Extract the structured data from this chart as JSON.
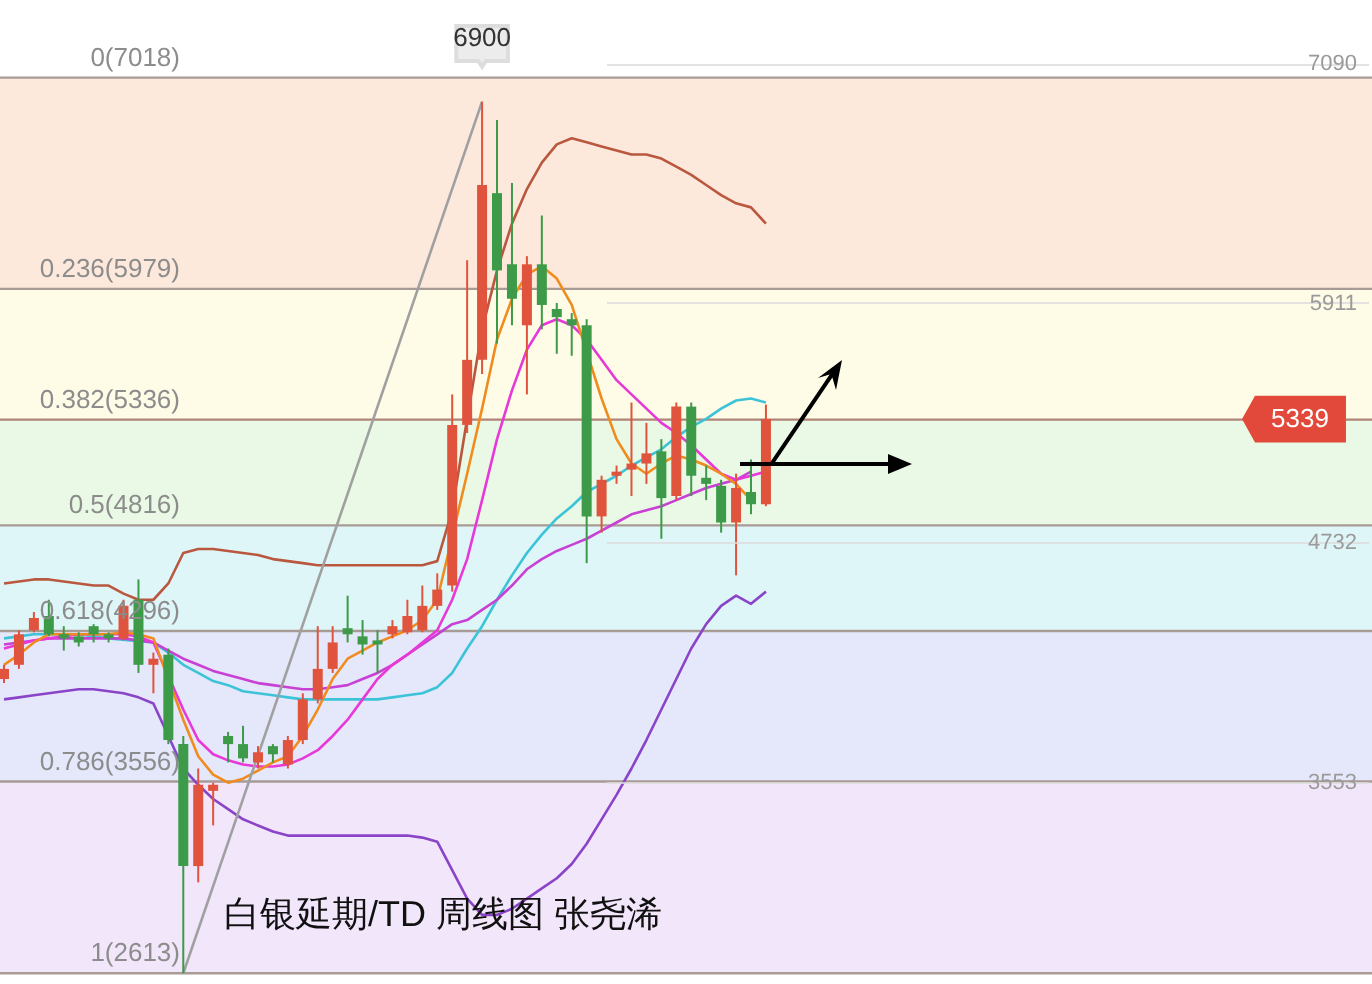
{
  "chart_data": {
    "type": "candlestick",
    "categories": [
      null,
      null,
      null,
      null,
      null,
      null,
      null,
      null,
      null,
      null,
      null,
      null,
      null,
      null,
      null,
      null,
      null,
      null,
      null,
      null,
      null,
      null,
      null,
      null,
      null,
      null,
      null,
      null,
      null,
      null,
      null,
      null,
      null,
      null,
      null,
      null,
      null,
      null,
      null,
      null,
      null,
      null,
      null,
      null,
      null,
      null,
      null,
      null,
      null,
      null,
      null,
      null
    ],
    "ohlc": [
      [
        4060,
        4130,
        4040,
        4110
      ],
      [
        4130,
        4300,
        4110,
        4280
      ],
      [
        4300,
        4390,
        4290,
        4360
      ],
      [
        4370,
        4450,
        4270,
        4280
      ],
      [
        4280,
        4320,
        4200,
        4260
      ],
      [
        4270,
        4290,
        4220,
        4240
      ],
      [
        4320,
        4330,
        4240,
        4280
      ],
      [
        4280,
        4290,
        4240,
        4260
      ],
      [
        4260,
        4450,
        4250,
        4420
      ],
      [
        4450,
        4550,
        4090,
        4130
      ],
      [
        4130,
        4190,
        3990,
        4160
      ],
      [
        4180,
        4210,
        3740,
        3760
      ],
      [
        3740,
        3780,
        2613,
        3140
      ],
      [
        3140,
        3620,
        3060,
        3540
      ],
      [
        3510,
        3550,
        3340,
        3540
      ],
      [
        3780,
        3800,
        3650,
        3740
      ],
      [
        3740,
        3830,
        3650,
        3670
      ],
      [
        3650,
        3730,
        3620,
        3700
      ],
      [
        3730,
        3740,
        3650,
        3690
      ],
      [
        3640,
        3780,
        3620,
        3760
      ],
      [
        3760,
        3990,
        3740,
        3960
      ],
      [
        3960,
        4320,
        3940,
        4110
      ],
      [
        4110,
        4320,
        4090,
        4240
      ],
      [
        4310,
        4470,
        4240,
        4280
      ],
      [
        4270,
        4350,
        4180,
        4230
      ],
      [
        4250,
        4300,
        4090,
        4230
      ],
      [
        4280,
        4350,
        4260,
        4320
      ],
      [
        4290,
        4450,
        4280,
        4370
      ],
      [
        4300,
        4520,
        4290,
        4420
      ],
      [
        4420,
        4580,
        4400,
        4500
      ],
      [
        4520,
        5460,
        4490,
        5310
      ],
      [
        5310,
        6120,
        5270,
        5630
      ],
      [
        5630,
        6900,
        5560,
        6490
      ],
      [
        6450,
        6810,
        5710,
        6070
      ],
      [
        6100,
        6500,
        5800,
        5930
      ],
      [
        5800,
        6140,
        5460,
        6100
      ],
      [
        6100,
        6340,
        5780,
        5900
      ],
      [
        5880,
        5910,
        5660,
        5840
      ],
      [
        5830,
        5860,
        5650,
        5800
      ],
      [
        5800,
        5830,
        4630,
        4860
      ],
      [
        4860,
        5060,
        4780,
        5040
      ],
      [
        5060,
        5110,
        5020,
        5080
      ],
      [
        5090,
        5420,
        4960,
        5120
      ],
      [
        5120,
        5320,
        5020,
        5170
      ],
      [
        5180,
        5240,
        4750,
        4950
      ],
      [
        4960,
        5420,
        4940,
        5400
      ],
      [
        5400,
        5420,
        4960,
        5060
      ],
      [
        5050,
        5110,
        4940,
        5020
      ],
      [
        5010,
        5040,
        4780,
        4830
      ],
      [
        4830,
        5070,
        4570,
        5000
      ],
      [
        4980,
        5140,
        4870,
        4920
      ],
      [
        4920,
        5410,
        4910,
        5339
      ]
    ],
    "colors": [
      "#e0533c",
      "#e0533c",
      "#e0533c",
      "#3c9a48",
      "#3c9a48",
      "#3c9a48",
      "#3c9a48",
      "#3c9a48",
      "#e0533c",
      "#3c9a48",
      "#e0533c",
      "#3c9a48",
      "#3c9a48",
      "#e0533c",
      "#e0533c",
      "#3c9a48",
      "#3c9a48",
      "#e0533c",
      "#3c9a48",
      "#e0533c",
      "#e0533c",
      "#e0533c",
      "#e0533c",
      "#3c9a48",
      "#3c9a48",
      "#3c9a48",
      "#e0533c",
      "#e0533c",
      "#e0533c",
      "#e0533c",
      "#e0533c",
      "#e0533c",
      "#e0533c",
      "#3c9a48",
      "#3c9a48",
      "#e0533c",
      "#3c9a48",
      "#3c9a48",
      "#3c9a48",
      "#3c9a48",
      "#e0533c",
      "#e0533c",
      "#e0533c",
      "#e0533c",
      "#3c9a48",
      "#e0533c",
      "#3c9a48",
      "#3c9a48",
      "#3c9a48",
      "#e0533c",
      "#3c9a48",
      "#e0533c"
    ],
    "series": [
      {
        "type": "line",
        "color": "#b9573f",
        "values": [
          4530,
          4540,
          4550,
          4550,
          4540,
          4530,
          4520,
          4520,
          4480,
          4450,
          4450,
          4530,
          4680,
          4700,
          4700,
          4690,
          4680,
          4670,
          4650,
          4640,
          4630,
          4620,
          4620,
          4620,
          4620,
          4620,
          4620,
          4620,
          4620,
          4640,
          4890,
          5340,
          5780,
          6070,
          6300,
          6470,
          6600,
          6690,
          6720,
          6700,
          6680,
          6660,
          6640,
          6640,
          6620,
          6580,
          6540,
          6490,
          6440,
          6400,
          6380,
          6300
        ]
      },
      {
        "type": "line",
        "color": "#3cc3d8",
        "values": [
          4260,
          4270,
          4280,
          4280,
          4280,
          4280,
          4270,
          4260,
          null,
          null,
          4240,
          4190,
          4130,
          4090,
          4050,
          4030,
          4000,
          3990,
          3980,
          3970,
          3960,
          3960,
          3960,
          3960,
          3960,
          3960,
          3970,
          3980,
          3990,
          4020,
          4090,
          4210,
          4320,
          4450,
          4570,
          4680,
          4770,
          4850,
          4910,
          4980,
          5020,
          5060,
          5110,
          5150,
          5190,
          5250,
          5300,
          5340,
          5390,
          5430,
          5440,
          5420
        ]
      },
      {
        "type": "line",
        "color": "#8a44c8",
        "values": [
          3960,
          3970,
          3980,
          3990,
          4000,
          4010,
          4010,
          4000,
          3990,
          3970,
          3940,
          null,
          3620,
          3540,
          3470,
          3420,
          3370,
          3340,
          3310,
          3290,
          3290,
          3290,
          3290,
          3290,
          3290,
          3290,
          3290,
          3290,
          3280,
          3260,
          3120,
          2980,
          2900,
          2900,
          2930,
          2980,
          3030,
          3080,
          3150,
          3250,
          3370,
          3490,
          3620,
          3760,
          3910,
          4060,
          4210,
          4330,
          4420,
          4470,
          4430,
          4490
        ]
      },
      {
        "type": "line",
        "color": "#c840d4",
        "values": [
          4230,
          4240,
          4250,
          4260,
          4260,
          4260,
          4260,
          4260,
          4260,
          4250,
          4240,
          4200,
          4160,
          4130,
          4100,
          4080,
          4060,
          4040,
          4030,
          4020,
          4010,
          4010,
          4020,
          4030,
          4060,
          4090,
          4130,
          4180,
          4230,
          4280,
          4330,
          4350,
          4400,
          4450,
          4520,
          4600,
          4650,
          4690,
          4720,
          4750,
          4790,
          4830,
          4870,
          4890,
          4910,
          4940,
          4970,
          5000,
          5020,
          5040,
          5080,
          null
        ]
      },
      {
        "type": "line",
        "color": "#e838d8",
        "values": [
          4210,
          4230,
          4250,
          4260,
          4270,
          4280,
          4280,
          4280,
          4280,
          4270,
          4240,
          null,
          3910,
          3760,
          3690,
          3660,
          3640,
          3630,
          3630,
          3640,
          3670,
          3710,
          3780,
          3860,
          3960,
          4060,
          4130,
          4180,
          4240,
          4300,
          4450,
          4650,
          4940,
          5240,
          5480,
          5680,
          5800,
          5830,
          5800,
          5730,
          5630,
          5530,
          5460,
          5390,
          5320,
          5270,
          5210,
          5140,
          5070,
          5040,
          5060,
          5080
        ]
      },
      {
        "type": "line",
        "color": "#f08c1e",
        "values": [
          4130,
          4180,
          4240,
          4280,
          4280,
          4280,
          4280,
          4280,
          4290,
          4280,
          4260,
          null,
          3860,
          3680,
          3590,
          3550,
          3570,
          3610,
          3650,
          3680,
          3780,
          3910,
          4060,
          4160,
          4200,
          4240,
          4270,
          4300,
          4350,
          4450,
          null,
          5070,
          5390,
          5730,
          5930,
          6050,
          6090,
          6030,
          5900,
          null,
          5440,
          5240,
          5120,
          5070,
          5120,
          5160,
          5140,
          5110,
          5070,
          5020,
          4940,
          null
        ]
      },
      {
        "type": "line",
        "color": "#a0a0a0",
        "values": [
          null,
          null,
          null,
          null,
          null,
          null,
          null,
          null,
          null,
          null,
          null,
          null,
          2613,
          null,
          null,
          null,
          null,
          null,
          null,
          null,
          null,
          null,
          null,
          null,
          null,
          null,
          null,
          null,
          null,
          null,
          null,
          null,
          6900,
          null,
          null,
          null,
          null,
          null,
          null,
          null,
          null,
          null,
          null,
          null,
          null,
          null,
          null,
          null,
          null,
          null,
          null,
          null
        ]
      }
    ],
    "ylim": [
      2560,
      7400
    ],
    "yticks": [
      7090,
      5911,
      4732,
      3553
    ],
    "grid": "y",
    "tick_labels": "y",
    "bands": [
      {
        "axis": "y",
        "from": 5979,
        "to": 7018,
        "color": "#fde9dc"
      },
      {
        "axis": "y",
        "from": 5336,
        "to": 5979,
        "color": "#fefbe6"
      },
      {
        "axis": "y",
        "from": 4816,
        "to": 5336,
        "color": "#e9f9e5"
      },
      {
        "axis": "y",
        "from": 4296,
        "to": 4816,
        "color": "#dff6f8"
      },
      {
        "axis": "y",
        "from": 3556,
        "to": 4296,
        "color": "#e5e8fb"
      },
      {
        "axis": "y",
        "from": 2613,
        "to": 3556,
        "color": "#f2e6fb"
      }
    ],
    "ref_lines": [
      {
        "axis": "y",
        "value": 7018,
        "label": "0(7018)",
        "color": "#a89a94"
      },
      {
        "axis": "y",
        "value": 5979,
        "label": "0.236(5979)",
        "color": "#a89a94"
      },
      {
        "axis": "y",
        "value": 5336,
        "label": "0.382(5336)",
        "color": "#b08478"
      },
      {
        "axis": "y",
        "value": 4816,
        "label": "0.5(4816)",
        "color": "#a89a94"
      },
      {
        "axis": "y",
        "value": 4296,
        "label": "0.618(4296)",
        "color": "#a89a94"
      },
      {
        "axis": "y",
        "value": 3556,
        "label": "0.786(3556)",
        "color": "#a89a94"
      },
      {
        "axis": "y",
        "value": 2613,
        "label": "1(2613)",
        "color": "#a89a94"
      }
    ],
    "annotations": [
      {
        "text": "6900",
        "y": 6900
      },
      {
        "text": "5339",
        "y": 5339
      },
      "白银延期/TD  周线图 张尧浠"
    ]
  }
}
